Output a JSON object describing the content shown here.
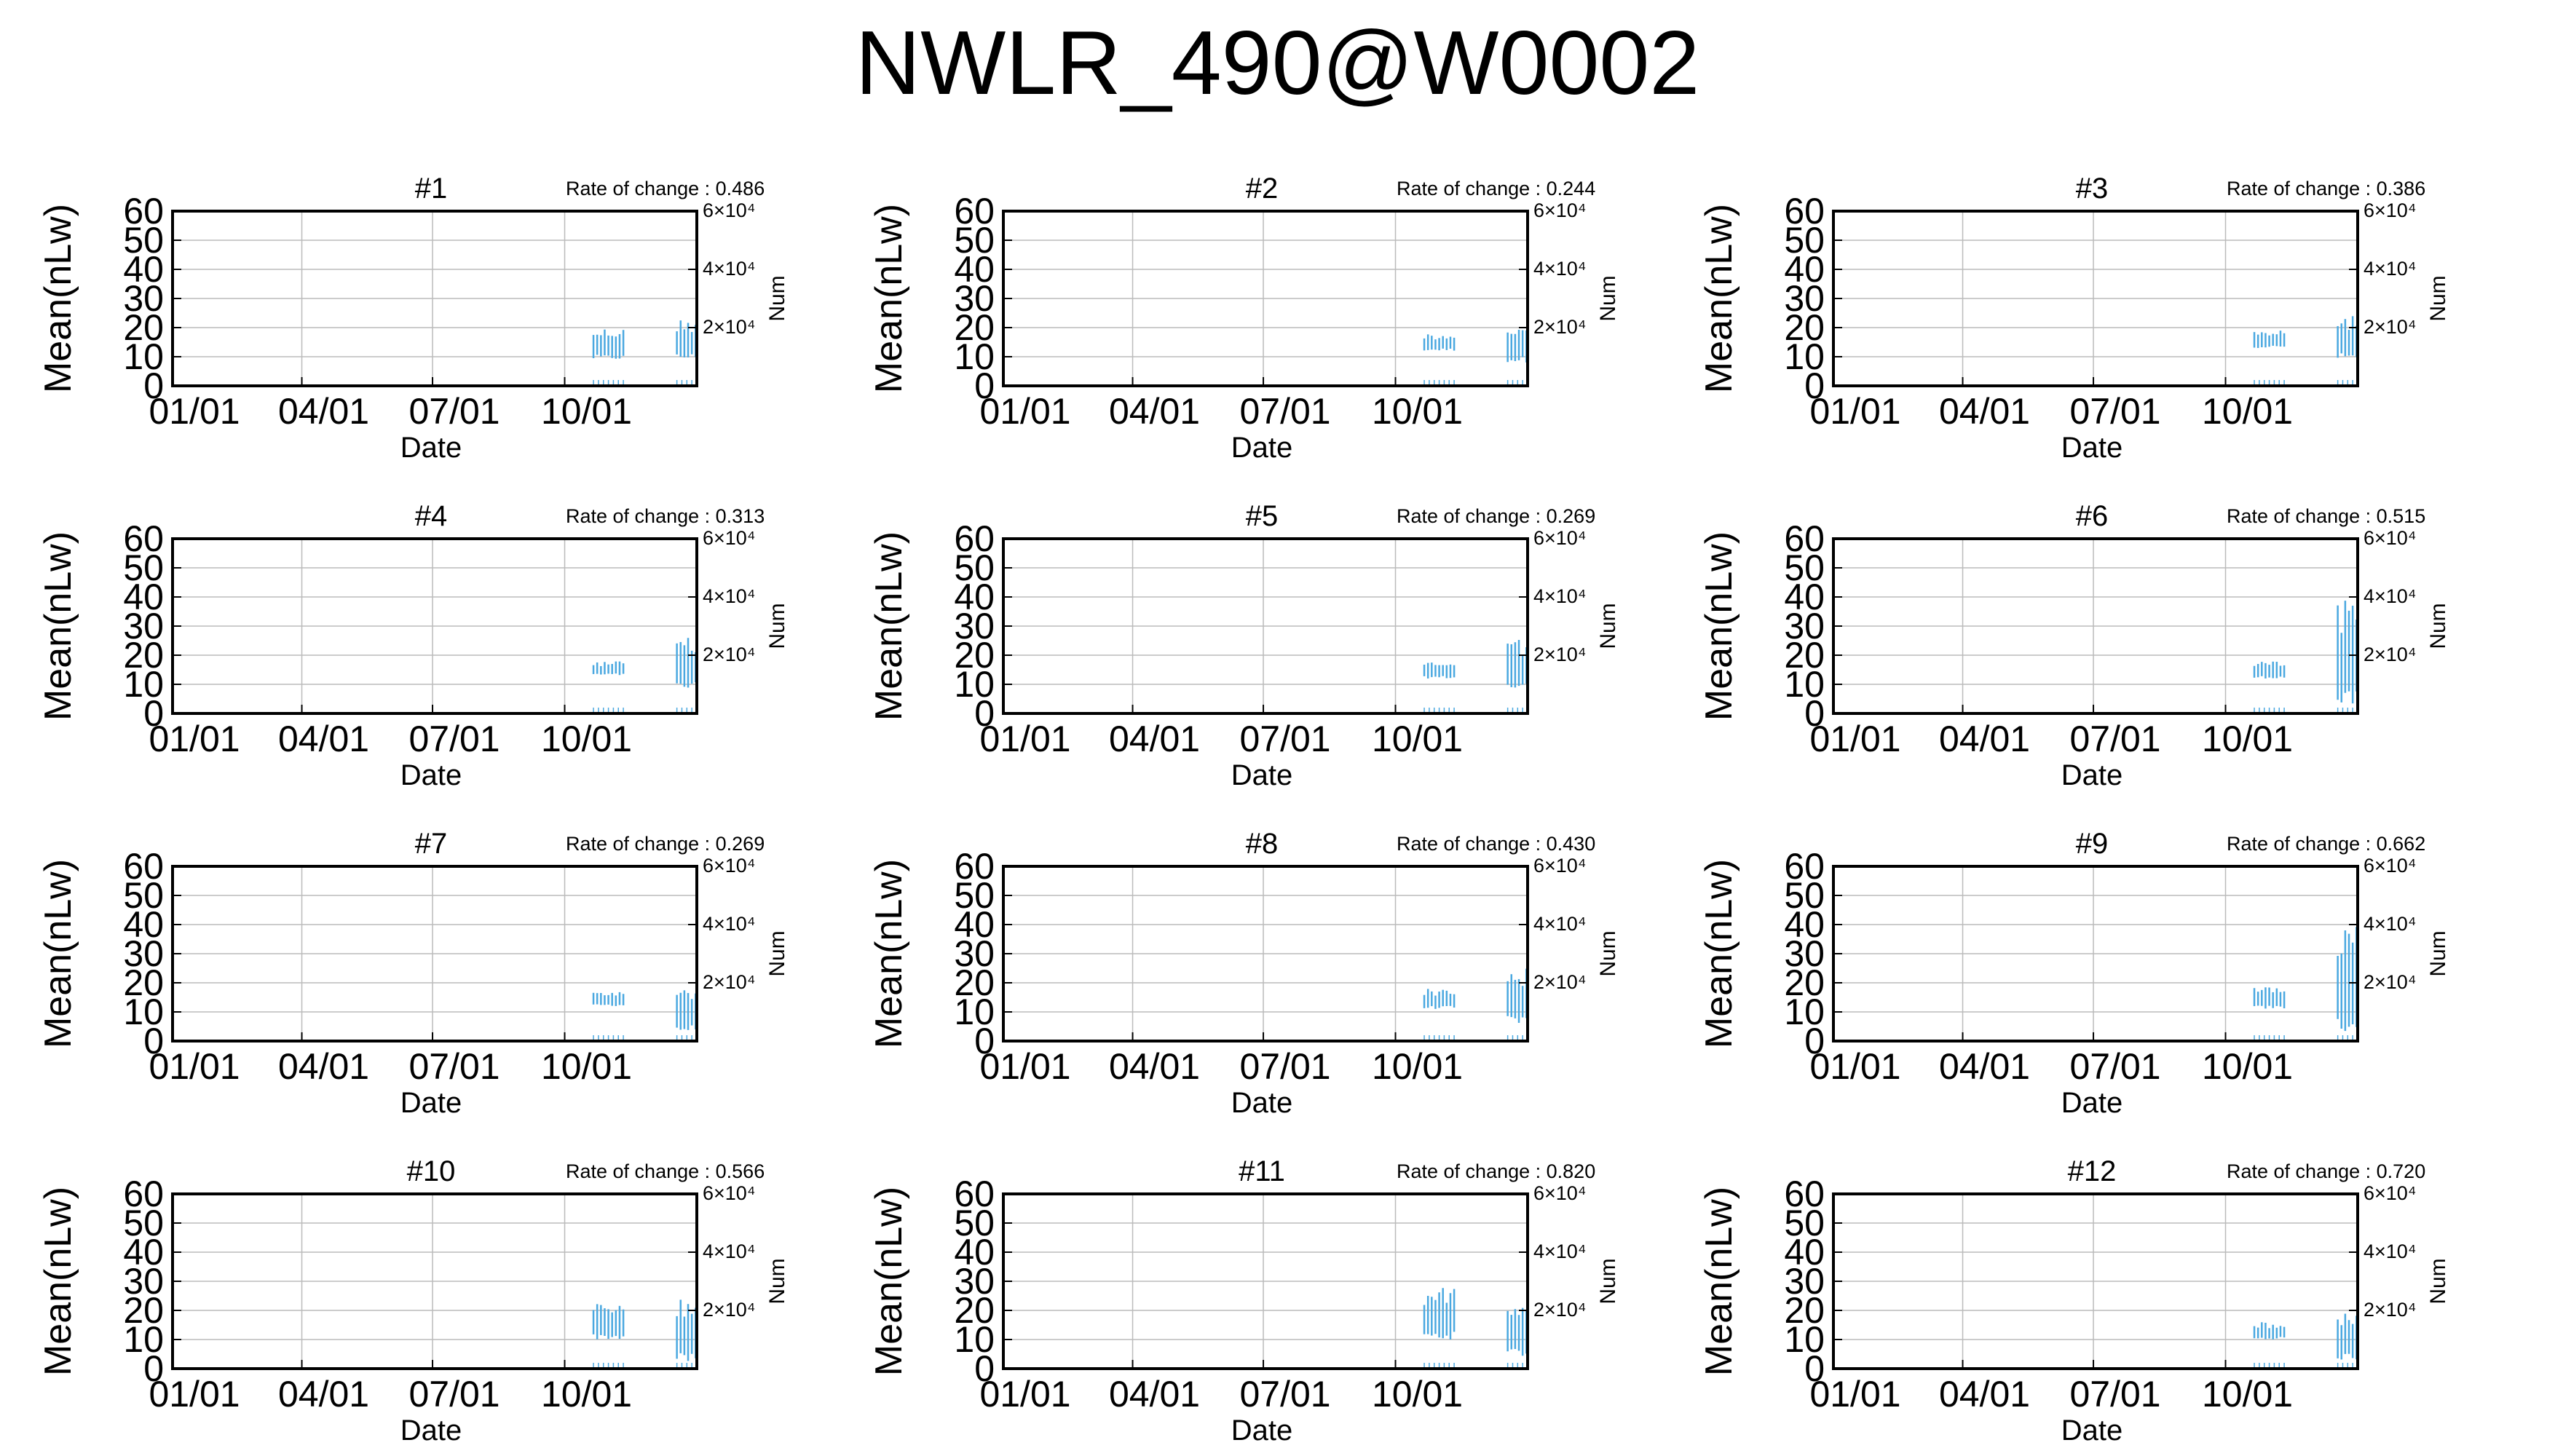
{
  "title": "NWLR_490@W0002",
  "colors": {
    "series": "#4aa8e0",
    "grid": "#bbbbbb",
    "axis": "#000000"
  },
  "chart_data": {
    "type": "scatter",
    "panel_layout": {
      "rows": 4,
      "cols": 3
    },
    "y_ticks": [
      "60",
      "50",
      "40",
      "30",
      "20",
      "10",
      "0"
    ],
    "x_ticks": [
      "01/01",
      "04/01",
      "07/01",
      "10/01"
    ],
    "y2_ticks": [
      {
        "label": "6×10⁴",
        "value": 60000
      },
      {
        "label": "4×10⁴",
        "value": 40000
      },
      {
        "label": "2×10⁴",
        "value": 20000
      }
    ],
    "xlabel": "Date",
    "ylabel": "Mean(nLw)",
    "y2label": "Num",
    "ylim": [
      0,
      60
    ],
    "y2lim": [
      0,
      60000
    ],
    "xlim": [
      "01/01",
      "12/31"
    ],
    "rate_prefix": "Rate of change : ",
    "panels": [
      {
        "title": "#1",
        "rate": "0.486",
        "early": {
          "start": 338,
          "end": 364,
          "low": 9,
          "high": 20
        },
        "late": {
          "start": 405,
          "end": 421,
          "low": 9,
          "high": 23
        }
      },
      {
        "title": "#2",
        "rate": "0.244",
        "early": {
          "start": 338,
          "end": 364,
          "low": 12,
          "high": 18
        },
        "late": {
          "start": 405,
          "end": 421,
          "low": 8,
          "high": 21
        }
      },
      {
        "title": "#3",
        "rate": "0.386",
        "early": {
          "start": 338,
          "end": 364,
          "low": 13,
          "high": 19
        },
        "late": {
          "start": 405,
          "end": 421,
          "low": 9,
          "high": 24
        }
      },
      {
        "title": "#4",
        "rate": "0.313",
        "early": {
          "start": 338,
          "end": 364,
          "low": 13,
          "high": 18
        },
        "late": {
          "start": 405,
          "end": 421,
          "low": 8,
          "high": 26
        }
      },
      {
        "title": "#5",
        "rate": "0.269",
        "early": {
          "start": 338,
          "end": 364,
          "low": 12,
          "high": 18
        },
        "late": {
          "start": 405,
          "end": 421,
          "low": 8,
          "high": 26
        }
      },
      {
        "title": "#6",
        "rate": "0.515",
        "early": {
          "start": 338,
          "end": 364,
          "low": 12,
          "high": 18
        },
        "late": {
          "start": 405,
          "end": 421,
          "low": 2,
          "high": 40
        }
      },
      {
        "title": "#7",
        "rate": "0.269",
        "early": {
          "start": 338,
          "end": 364,
          "low": 12,
          "high": 17
        },
        "late": {
          "start": 405,
          "end": 421,
          "low": 3,
          "high": 20
        }
      },
      {
        "title": "#8",
        "rate": "0.430",
        "early": {
          "start": 338,
          "end": 364,
          "low": 11,
          "high": 18
        },
        "late": {
          "start": 405,
          "end": 421,
          "low": 6,
          "high": 25
        }
      },
      {
        "title": "#9",
        "rate": "0.662",
        "early": {
          "start": 338,
          "end": 364,
          "low": 11,
          "high": 19
        },
        "late": {
          "start": 405,
          "end": 421,
          "low": 3,
          "high": 40
        }
      },
      {
        "title": "#10",
        "rate": "0.566",
        "early": {
          "start": 338,
          "end": 364,
          "low": 10,
          "high": 23
        },
        "late": {
          "start": 405,
          "end": 421,
          "low": 2,
          "high": 24
        }
      },
      {
        "title": "#11",
        "rate": "0.820",
        "early": {
          "start": 338,
          "end": 364,
          "low": 10,
          "high": 28
        },
        "late": {
          "start": 405,
          "end": 421,
          "low": 4,
          "high": 26
        }
      },
      {
        "title": "#12",
        "rate": "0.720",
        "early": {
          "start": 338,
          "end": 364,
          "low": 10,
          "high": 16
        },
        "late": {
          "start": 405,
          "end": 421,
          "low": 3,
          "high": 19
        }
      }
    ]
  }
}
